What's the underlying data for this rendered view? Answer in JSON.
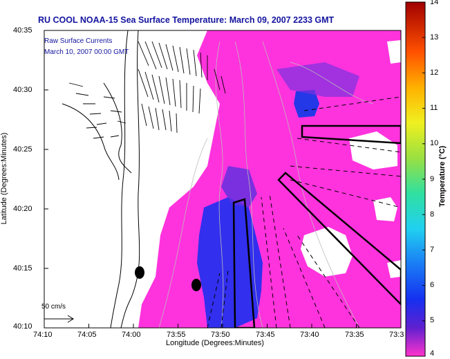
{
  "title": "RU COOL  NOAA-15  Sea Surface Temperature:  March 09, 2007 2233 GMT",
  "legend": {
    "line1": "Raw Surface Currents",
    "line2": "March 10, 2007 00:00 GMT",
    "scale_label": "50 cm/s"
  },
  "axes": {
    "ylabel": "Latitude (Degrees:Minutes)",
    "xlabel": "Longitude (Degrees:Minutes)",
    "yticks": [
      "40:35",
      "40:30",
      "40:25",
      "40:20",
      "40:15",
      "40:10"
    ],
    "xticks": [
      "74:10",
      "74:05",
      "74:00",
      "73:55",
      "73:50",
      "73:45",
      "73:40",
      "73:35",
      "73:3"
    ]
  },
  "colorbar": {
    "title": "Temperature (°C)",
    "ticks": [
      "14",
      "13",
      "12",
      "11",
      "10",
      "9",
      "8",
      "7",
      "6",
      "5",
      "4"
    ],
    "min": 4,
    "max": 14
  },
  "colors": {
    "sst_warm": "#ff33dd",
    "sst_cool": "#1c2ff0",
    "land": "#ffffff",
    "title": "#1414a0"
  }
}
